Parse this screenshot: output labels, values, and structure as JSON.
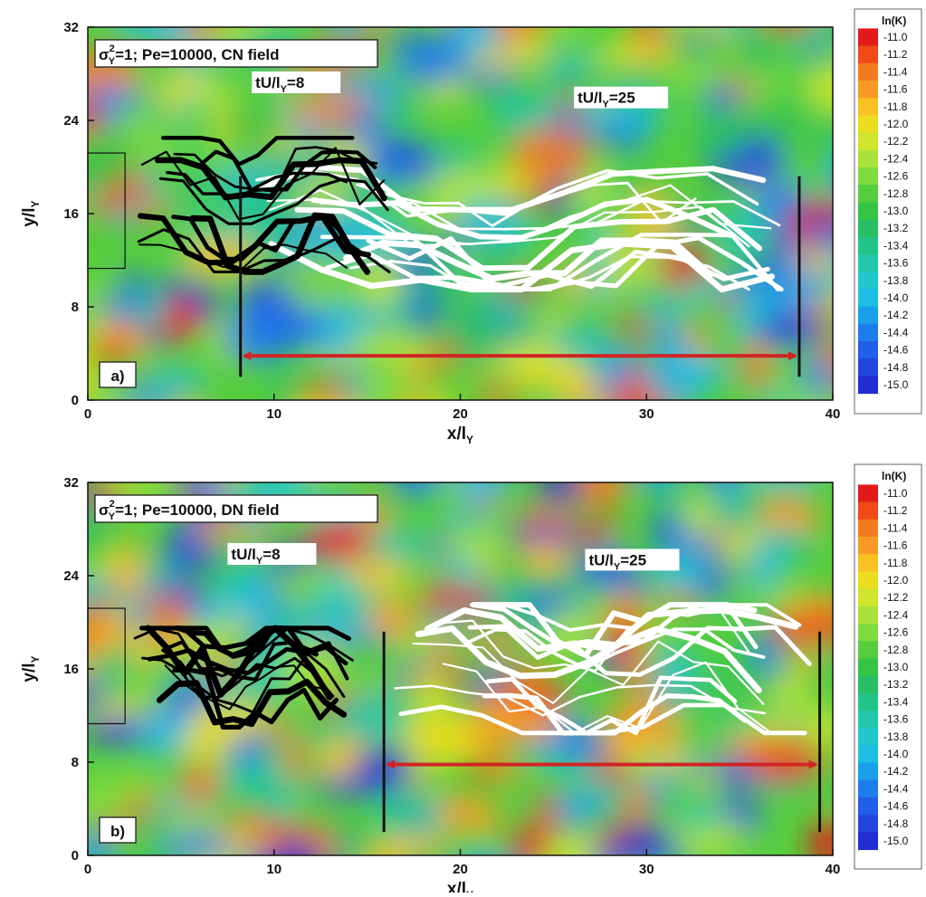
{
  "chart_data": [
    {
      "type": "heatmap",
      "panel_label": "a)",
      "field_title": "1; Pe=10000, CN field",
      "title_sigma": "σ",
      "title_sup": "2",
      "title_sub": "Y",
      "title_rest": "=1; Pe=10000, CN field",
      "xlabel": "x/l",
      "xlabel_sub": "Y",
      "ylabel": "y/l",
      "ylabel_sub": "Y",
      "xlim": [
        0,
        40
      ],
      "ylim": [
        0,
        32
      ],
      "x_ticks": [
        "0",
        "10",
        "20",
        "30",
        "40"
      ],
      "y_ticks": [
        "0",
        "8",
        "16",
        "24",
        "32"
      ],
      "annotations": [
        {
          "text_main": "tU/l",
          "text_sub": "Y",
          "text_tail": "=8"
        },
        {
          "text_main": "tU/l",
          "text_sub": "Y",
          "text_tail": "=25"
        }
      ],
      "source_box": {
        "x": [
          0,
          2
        ],
        "y": [
          11.3,
          21.2
        ]
      },
      "front_lines_x": [
        8.2,
        38.2
      ],
      "arrow_x": [
        8.2,
        38.2
      ],
      "arrow_y": 3.8,
      "plume_t8": {
        "x_range": [
          2.5,
          16.5
        ],
        "y_range": [
          11,
          22.5
        ],
        "color": "#000000"
      },
      "plume_t25": {
        "x_range": [
          8.5,
          38
        ],
        "y_range": [
          9.5,
          20
        ],
        "color": "#ffffff"
      },
      "colorbar": {
        "title": "ln(K)",
        "values": [
          "-11.0",
          "-11.2",
          "-11.4",
          "-11.6",
          "-11.8",
          "-12.0",
          "-12.2",
          "-12.4",
          "-12.6",
          "-12.8",
          "-13.0",
          "-13.2",
          "-13.4",
          "-13.6",
          "-13.8",
          "-14.0",
          "-14.2",
          "-14.4",
          "-14.6",
          "-14.8",
          "-15.0"
        ]
      }
    },
    {
      "type": "heatmap",
      "panel_label": "b)",
      "field_title": "1; Pe=10000, DN field",
      "title_sigma": "σ",
      "title_sup": "2",
      "title_sub": "Y",
      "title_rest": "=1; Pe=10000, DN field",
      "xlabel": "x/l",
      "xlabel_sub": "Y",
      "ylabel": "y/l",
      "ylabel_sub": "Y",
      "xlim": [
        0,
        40
      ],
      "ylim": [
        0,
        32
      ],
      "x_ticks": [
        "0",
        "10",
        "20",
        "30",
        "40"
      ],
      "y_ticks": [
        "0",
        "8",
        "16",
        "24",
        "32"
      ],
      "annotations": [
        {
          "text_main": "tU/l",
          "text_sub": "Y",
          "text_tail": "=8"
        },
        {
          "text_main": "tU/l",
          "text_sub": "Y",
          "text_tail": "=25"
        }
      ],
      "source_box": {
        "x": [
          0,
          2
        ],
        "y": [
          11.3,
          21.2
        ]
      },
      "front_lines_x": [
        15.9,
        39.3
      ],
      "arrow_x": [
        15.9,
        39.3
      ],
      "arrow_y": 7.8,
      "plume_t8": {
        "x_range": [
          2.5,
          14.5
        ],
        "y_range": [
          11,
          19.5
        ],
        "color": "#000000"
      },
      "plume_t25": {
        "x_range": [
          16,
          39
        ],
        "y_range": [
          10.5,
          21.5
        ],
        "color": "#ffffff"
      },
      "colorbar": {
        "title": "ln(K)",
        "values": [
          "-11.0",
          "-11.2",
          "-11.4",
          "-11.6",
          "-11.8",
          "-12.0",
          "-12.2",
          "-12.4",
          "-12.6",
          "-12.8",
          "-13.0",
          "-13.2",
          "-13.4",
          "-13.6",
          "-13.8",
          "-14.0",
          "-14.2",
          "-14.4",
          "-14.6",
          "-14.8",
          "-15.0"
        ]
      }
    }
  ],
  "colors": {
    "arrow": "#d02525",
    "colormap": [
      "#e41a1a",
      "#ef4a17",
      "#f47a1e",
      "#f99a25",
      "#f8c021",
      "#ecde1e",
      "#cfe52c",
      "#a9e33a",
      "#7fda3f",
      "#54ce3d",
      "#36c445",
      "#28bf65",
      "#22c389",
      "#22c7ab",
      "#20c8cd",
      "#1ebde4",
      "#1aa0e9",
      "#1d7eeb",
      "#2160e8",
      "#2346e2",
      "#1f2ed3"
    ]
  }
}
